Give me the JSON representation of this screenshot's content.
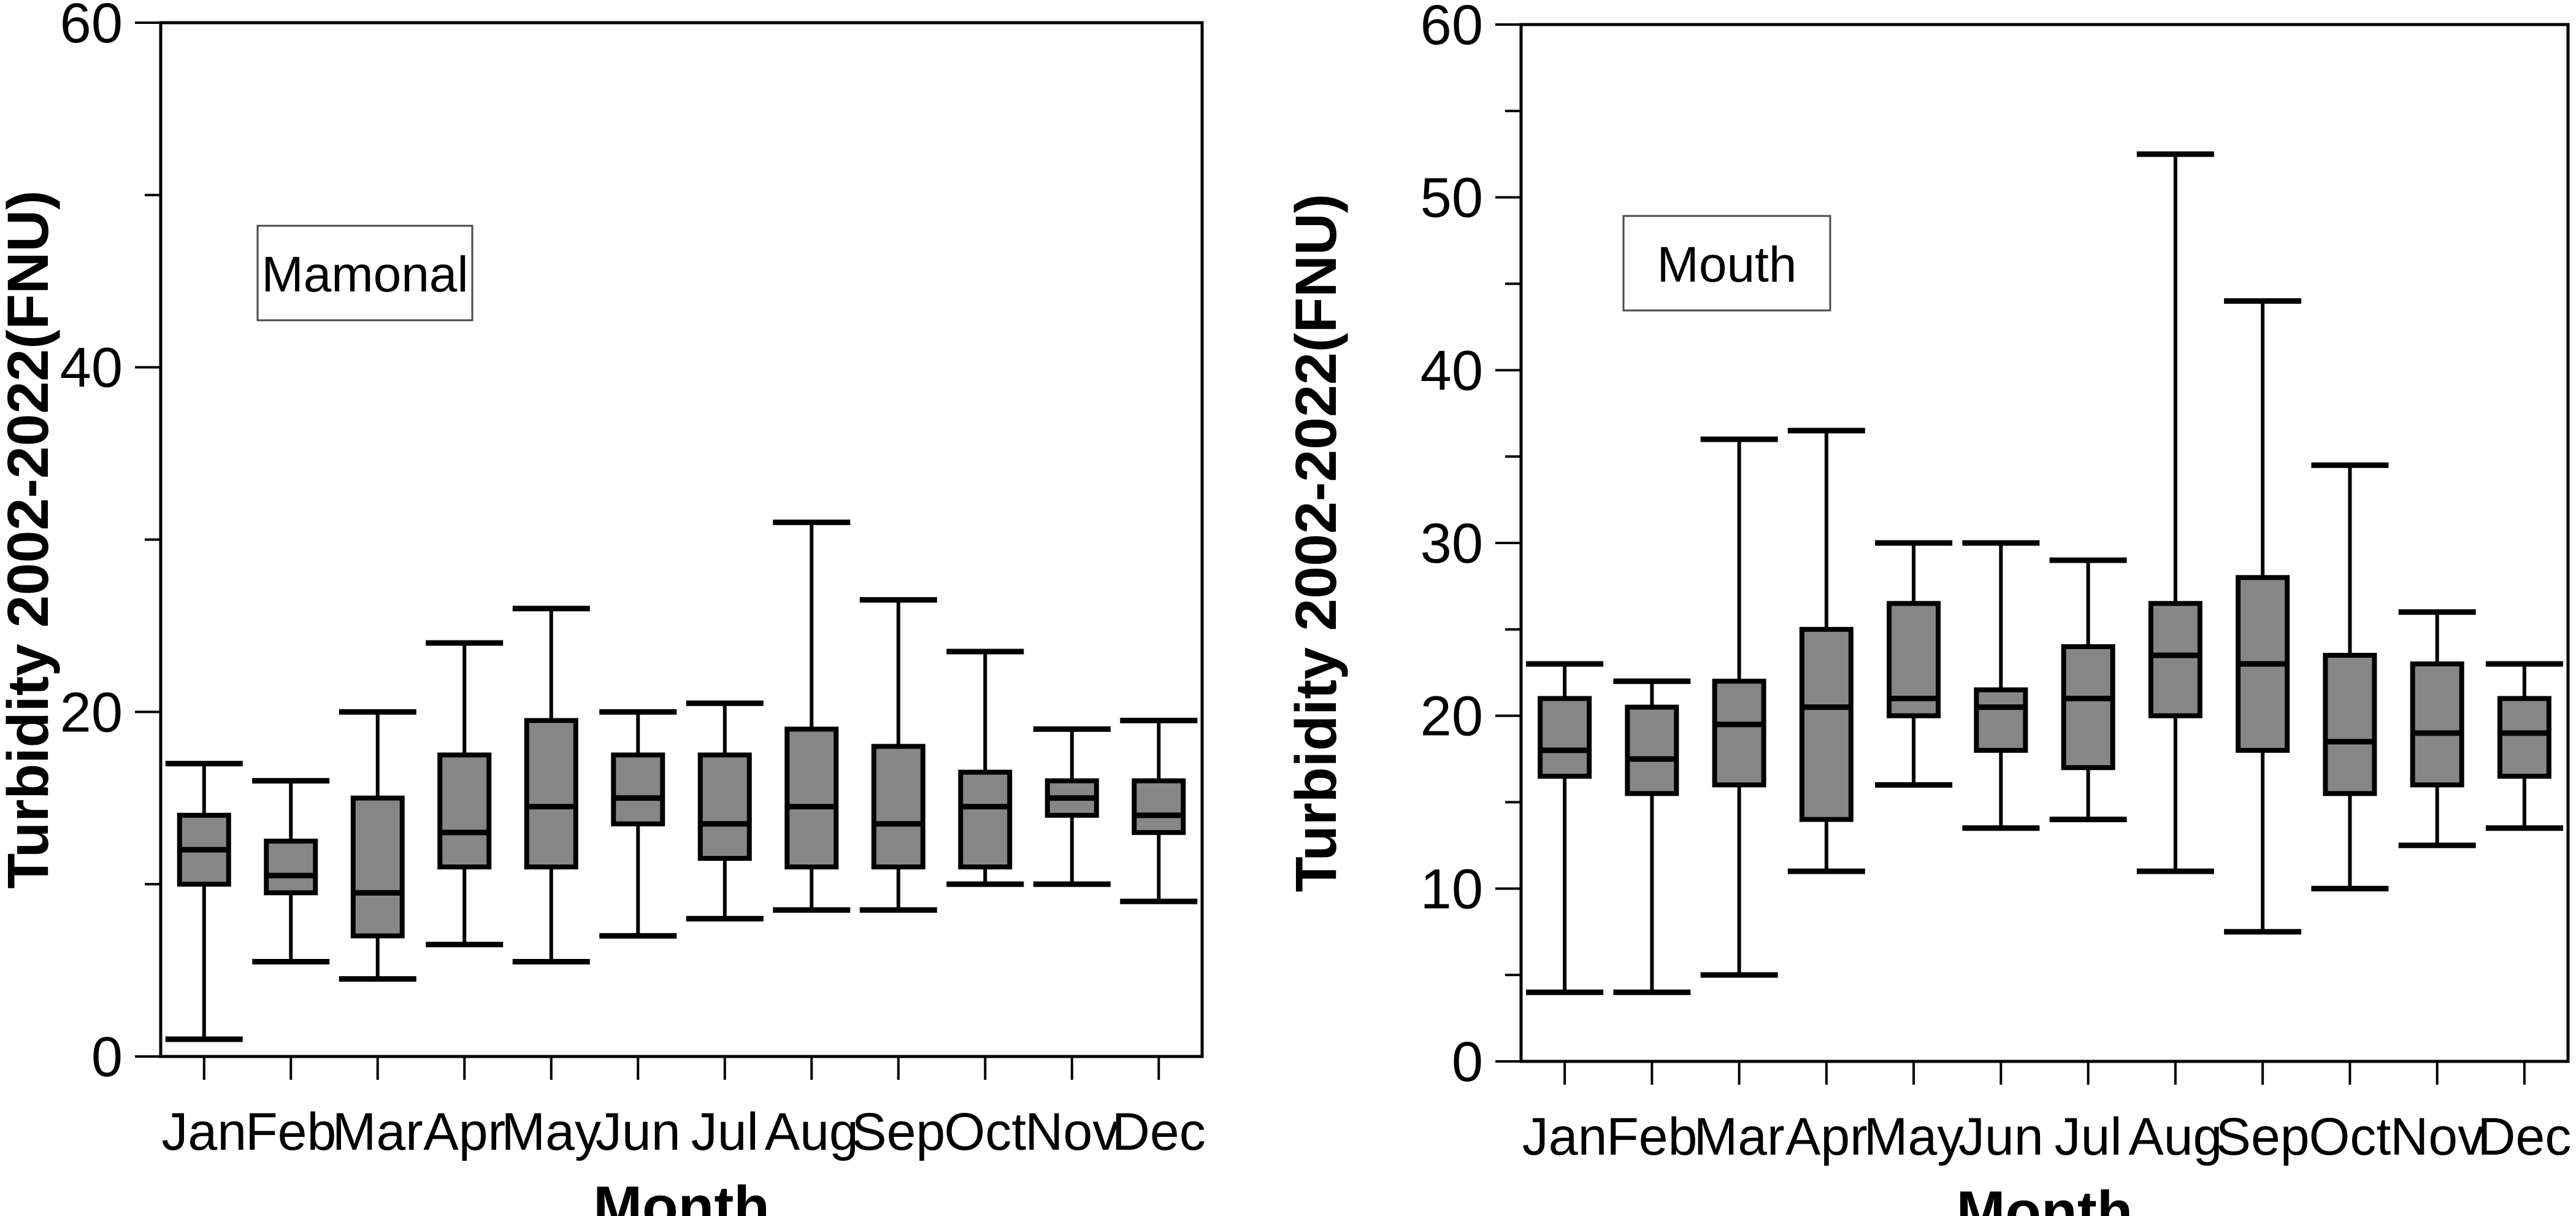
{
  "figure": {
    "background": "#ffffff",
    "box_fill": "#868686",
    "line_color": "#000000",
    "label_box_border": "#4a4a4a"
  },
  "chart_data": [
    {
      "type": "box",
      "title": "Mamonal",
      "xlabel": "Month",
      "ylabel": "Turbidity 2002-2022(FNU)",
      "ylim": [
        0,
        60
      ],
      "y_tick_labels": [
        0,
        20,
        40,
        60
      ],
      "y_major_step": 20,
      "y_minor_step": 10,
      "grid": false,
      "legend": "none",
      "categories": [
        "Jan",
        "Feb",
        "Mar",
        "Apr",
        "May",
        "Jun",
        "Jul",
        "Aug",
        "Sep",
        "Oct",
        "Nov",
        "Dec"
      ],
      "series": [
        {
          "name": "Turbidity (FNU)",
          "whisker_low": [
            1,
            5.5,
            4.5,
            6.5,
            5.5,
            7,
            8,
            8.5,
            8.5,
            10,
            10,
            9
          ],
          "q1": [
            10,
            9.5,
            7,
            11,
            11,
            13.5,
            11.5,
            11,
            11,
            11,
            14,
            13
          ],
          "median": [
            12,
            10.5,
            9.5,
            13,
            14.5,
            15,
            13.5,
            14.5,
            13.5,
            14.5,
            15,
            14
          ],
          "q3": [
            14,
            12.5,
            15,
            17.5,
            19.5,
            17.5,
            17.5,
            19,
            18,
            16.5,
            16,
            16
          ],
          "whisker_high": [
            17,
            16,
            20,
            24,
            26,
            20,
            20.5,
            31,
            26.5,
            23.5,
            19,
            19.5
          ]
        }
      ]
    },
    {
      "type": "box",
      "title": "Mouth",
      "xlabel": "Month",
      "ylabel": "Turbidity 2002-2022(FNU)",
      "ylim": [
        0,
        60
      ],
      "y_tick_labels": [
        0,
        10,
        20,
        30,
        40,
        50,
        60
      ],
      "y_major_step": 10,
      "y_minor_step": 5,
      "grid": false,
      "legend": "none",
      "categories": [
        "Jan",
        "Feb",
        "Mar",
        "Apr",
        "May",
        "Jun",
        "Jul",
        "Aug",
        "Sep",
        "Oct",
        "Nov",
        "Dec"
      ],
      "series": [
        {
          "name": "Turbidity (FNU)",
          "whisker_low": [
            4,
            4,
            5,
            11,
            16,
            13.5,
            14,
            11,
            7.5,
            10,
            12.5,
            13.5
          ],
          "q1": [
            16.5,
            15.5,
            16,
            14,
            20,
            18,
            17,
            20,
            18,
            15.5,
            16,
            16.5
          ],
          "median": [
            18,
            17.5,
            19.5,
            20.5,
            21,
            20.5,
            21,
            23.5,
            23,
            18.5,
            19,
            19
          ],
          "q3": [
            21,
            20.5,
            22,
            25,
            26.5,
            21.5,
            24,
            26.5,
            28,
            23.5,
            23,
            21
          ],
          "whisker_high": [
            23,
            22,
            36,
            36.5,
            30,
            30,
            29,
            52.5,
            44,
            34.5,
            26,
            23
          ]
        }
      ]
    }
  ]
}
